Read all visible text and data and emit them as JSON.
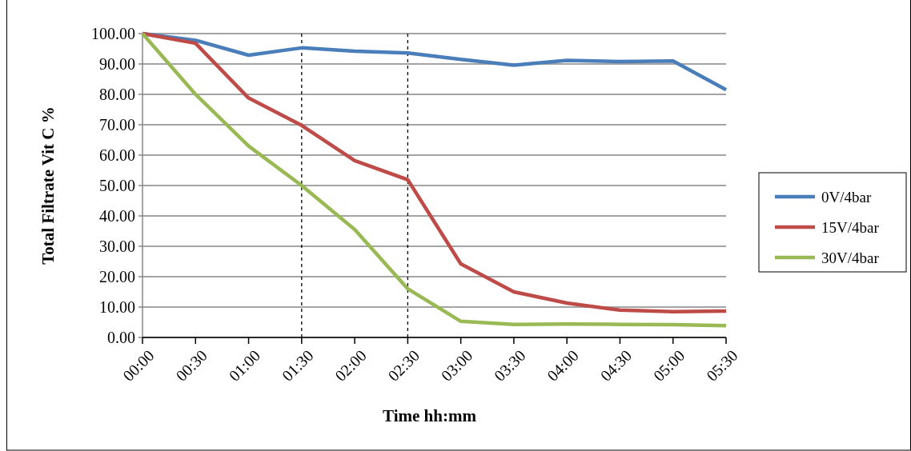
{
  "chart_data": {
    "type": "line",
    "xlabel": "Time hh:mm",
    "ylabel": "Total Filtrate Vit C %",
    "x": [
      0,
      0.5,
      1,
      1.5,
      2,
      2.5,
      3,
      3.5,
      4,
      4.5,
      5,
      5.5
    ],
    "series": [
      {
        "name": "0V/4bar",
        "color": "#4a7ebb",
        "values": [
          100,
          97.8,
          92.9,
          95.3,
          94.2,
          93.6,
          91.5,
          89.6,
          91.2,
          90.8,
          91.0,
          81.5
        ]
      },
      {
        "name": "15V/4bar",
        "color": "#be4b48",
        "values": [
          100,
          96.8,
          78.8,
          69.8,
          58.2,
          51.9,
          24.2,
          15.0,
          11.3,
          9.0,
          8.5,
          8.7
        ]
      },
      {
        "name": "30V/4bar",
        "color": "#98b954",
        "values": [
          100,
          80,
          63,
          50,
          35.5,
          16,
          5.3,
          4.3,
          4.4,
          4.3,
          4.2,
          3.9
        ]
      }
    ],
    "xlim": [
      0,
      5.5
    ],
    "xticks": [
      {
        "value": 0,
        "label": "00:00"
      },
      {
        "value": 0.5,
        "label": "00:30"
      },
      {
        "value": 1,
        "label": "01:00"
      },
      {
        "value": 1.5,
        "label": "01:30"
      },
      {
        "value": 2,
        "label": "02:00"
      },
      {
        "value": 2.5,
        "label": "02:30"
      },
      {
        "value": 3,
        "label": "03:00"
      },
      {
        "value": 3.5,
        "label": "03:30"
      },
      {
        "value": 4,
        "label": "04:00"
      },
      {
        "value": 4.5,
        "label": "04:30"
      },
      {
        "value": 5,
        "label": "05:00"
      },
      {
        "value": 5.5,
        "label": "05:30"
      }
    ],
    "ylim": [
      0,
      100
    ],
    "yticks": [
      {
        "value": 0,
        "label": "0.00"
      },
      {
        "value": 10,
        "label": "10.00"
      },
      {
        "value": 20,
        "label": "20.00"
      },
      {
        "value": 30,
        "label": "30.00"
      },
      {
        "value": 40,
        "label": "40.00"
      },
      {
        "value": 50,
        "label": "50.00"
      },
      {
        "value": 60,
        "label": "60.00"
      },
      {
        "value": 70,
        "label": "70.00"
      },
      {
        "value": 80,
        "label": "80.00"
      },
      {
        "value": 90,
        "label": "90.00"
      },
      {
        "value": 100,
        "label": "100.00"
      }
    ],
    "ref_lines": [
      {
        "axis": "x",
        "value": 1.5,
        "color": "#000000",
        "line_style": "dashed"
      },
      {
        "axis": "x",
        "value": 2.5,
        "color": "#000000",
        "line_style": "dashed"
      }
    ],
    "grid": "y",
    "legend": "right",
    "marker": "none",
    "line_style": "solid"
  }
}
